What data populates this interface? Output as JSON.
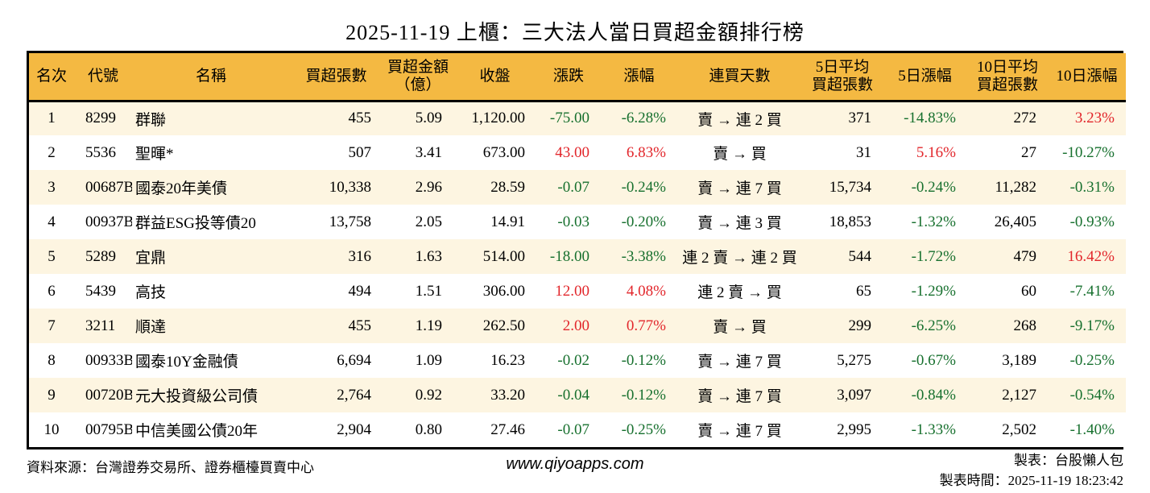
{
  "title": "2025-11-19 上櫃：三大法人當日買超金額排行榜",
  "colors": {
    "header_background": "#F4B942",
    "row_alt_background": "#FDF5E1",
    "up_red": "#E2262B",
    "down_green": "#17702E",
    "border": "#000000"
  },
  "table": {
    "headers": [
      {
        "label": "名次"
      },
      {
        "label": "代號"
      },
      {
        "label": "名稱"
      },
      {
        "label": "買超張數"
      },
      {
        "label": "買超金額\n（億）"
      },
      {
        "label": "收盤"
      },
      {
        "label": "漲跌"
      },
      {
        "label": "漲幅"
      },
      {
        "label": "連買天數"
      },
      {
        "label": "5日平均\n買超張數"
      },
      {
        "label": "5日漲幅"
      },
      {
        "label": "10日平均\n買超張數"
      },
      {
        "label": "10日漲幅"
      }
    ],
    "rows": [
      {
        "rank": "1",
        "code": "8299",
        "name": "群聯",
        "volume": "455",
        "amount": "5.09",
        "close": "1,120.00",
        "change": "-75.00",
        "change_color": "green",
        "pct": "-6.28%",
        "pct_color": "green",
        "streak": "賣 → 連 2 買",
        "avg5": "371",
        "pct5": "-14.83%",
        "pct5_color": "green",
        "avg10": "272",
        "pct10": "3.23%",
        "pct10_color": "red"
      },
      {
        "rank": "2",
        "code": "5536",
        "name": "聖暉*",
        "volume": "507",
        "amount": "3.41",
        "close": "673.00",
        "change": "43.00",
        "change_color": "red",
        "pct": "6.83%",
        "pct_color": "red",
        "streak": "賣 → 買",
        "avg5": "31",
        "pct5": "5.16%",
        "pct5_color": "red",
        "avg10": "27",
        "pct10": "-10.27%",
        "pct10_color": "green"
      },
      {
        "rank": "3",
        "code": "00687B",
        "name": "國泰20年美債",
        "volume": "10,338",
        "amount": "2.96",
        "close": "28.59",
        "change": "-0.07",
        "change_color": "green",
        "pct": "-0.24%",
        "pct_color": "green",
        "streak": "賣 → 連 7 買",
        "avg5": "15,734",
        "pct5": "-0.24%",
        "pct5_color": "green",
        "avg10": "11,282",
        "pct10": "-0.31%",
        "pct10_color": "green"
      },
      {
        "rank": "4",
        "code": "00937B",
        "name": "群益ESG投等債20",
        "volume": "13,758",
        "amount": "2.05",
        "close": "14.91",
        "change": "-0.03",
        "change_color": "green",
        "pct": "-0.20%",
        "pct_color": "green",
        "streak": "賣 → 連 3 買",
        "avg5": "18,853",
        "pct5": "-1.32%",
        "pct5_color": "green",
        "avg10": "26,405",
        "pct10": "-0.93%",
        "pct10_color": "green"
      },
      {
        "rank": "5",
        "code": "5289",
        "name": "宜鼎",
        "volume": "316",
        "amount": "1.63",
        "close": "514.00",
        "change": "-18.00",
        "change_color": "green",
        "pct": "-3.38%",
        "pct_color": "green",
        "streak": "連 2 賣 → 連 2 買",
        "avg5": "544",
        "pct5": "-1.72%",
        "pct5_color": "green",
        "avg10": "479",
        "pct10": "16.42%",
        "pct10_color": "red"
      },
      {
        "rank": "6",
        "code": "5439",
        "name": "高技",
        "volume": "494",
        "amount": "1.51",
        "close": "306.00",
        "change": "12.00",
        "change_color": "red",
        "pct": "4.08%",
        "pct_color": "red",
        "streak": "連 2 賣 → 買",
        "avg5": "65",
        "pct5": "-1.29%",
        "pct5_color": "green",
        "avg10": "60",
        "pct10": "-7.41%",
        "pct10_color": "green"
      },
      {
        "rank": "7",
        "code": "3211",
        "name": "順達",
        "volume": "455",
        "amount": "1.19",
        "close": "262.50",
        "change": "2.00",
        "change_color": "red",
        "pct": "0.77%",
        "pct_color": "red",
        "streak": "賣 → 買",
        "avg5": "299",
        "pct5": "-6.25%",
        "pct5_color": "green",
        "avg10": "268",
        "pct10": "-9.17%",
        "pct10_color": "green"
      },
      {
        "rank": "8",
        "code": "00933B",
        "name": "國泰10Y金融債",
        "volume": "6,694",
        "amount": "1.09",
        "close": "16.23",
        "change": "-0.02",
        "change_color": "green",
        "pct": "-0.12%",
        "pct_color": "green",
        "streak": "賣 → 連 7 買",
        "avg5": "5,275",
        "pct5": "-0.67%",
        "pct5_color": "green",
        "avg10": "3,189",
        "pct10": "-0.25%",
        "pct10_color": "green"
      },
      {
        "rank": "9",
        "code": "00720B",
        "name": "元大投資級公司債",
        "volume": "2,764",
        "amount": "0.92",
        "close": "33.20",
        "change": "-0.04",
        "change_color": "green",
        "pct": "-0.12%",
        "pct_color": "green",
        "streak": "賣 → 連 7 買",
        "avg5": "3,097",
        "pct5": "-0.84%",
        "pct5_color": "green",
        "avg10": "2,127",
        "pct10": "-0.54%",
        "pct10_color": "green"
      },
      {
        "rank": "10",
        "code": "00795B",
        "name": "中信美國公債20年",
        "volume": "2,904",
        "amount": "0.80",
        "close": "27.46",
        "change": "-0.07",
        "change_color": "green",
        "pct": "-0.25%",
        "pct_color": "green",
        "streak": "賣 → 連 7 買",
        "avg5": "2,995",
        "pct5": "-1.33%",
        "pct5_color": "green",
        "avg10": "2,502",
        "pct10": "-1.40%",
        "pct10_color": "green"
      }
    ]
  },
  "footer": {
    "source": "資料來源：台灣證券交易所、證券櫃檯買賣中心",
    "website": "www.qiyoapps.com",
    "author": "製表：台股懶人包",
    "generated_at": "製表時間：2025-11-19 18:23:42"
  }
}
